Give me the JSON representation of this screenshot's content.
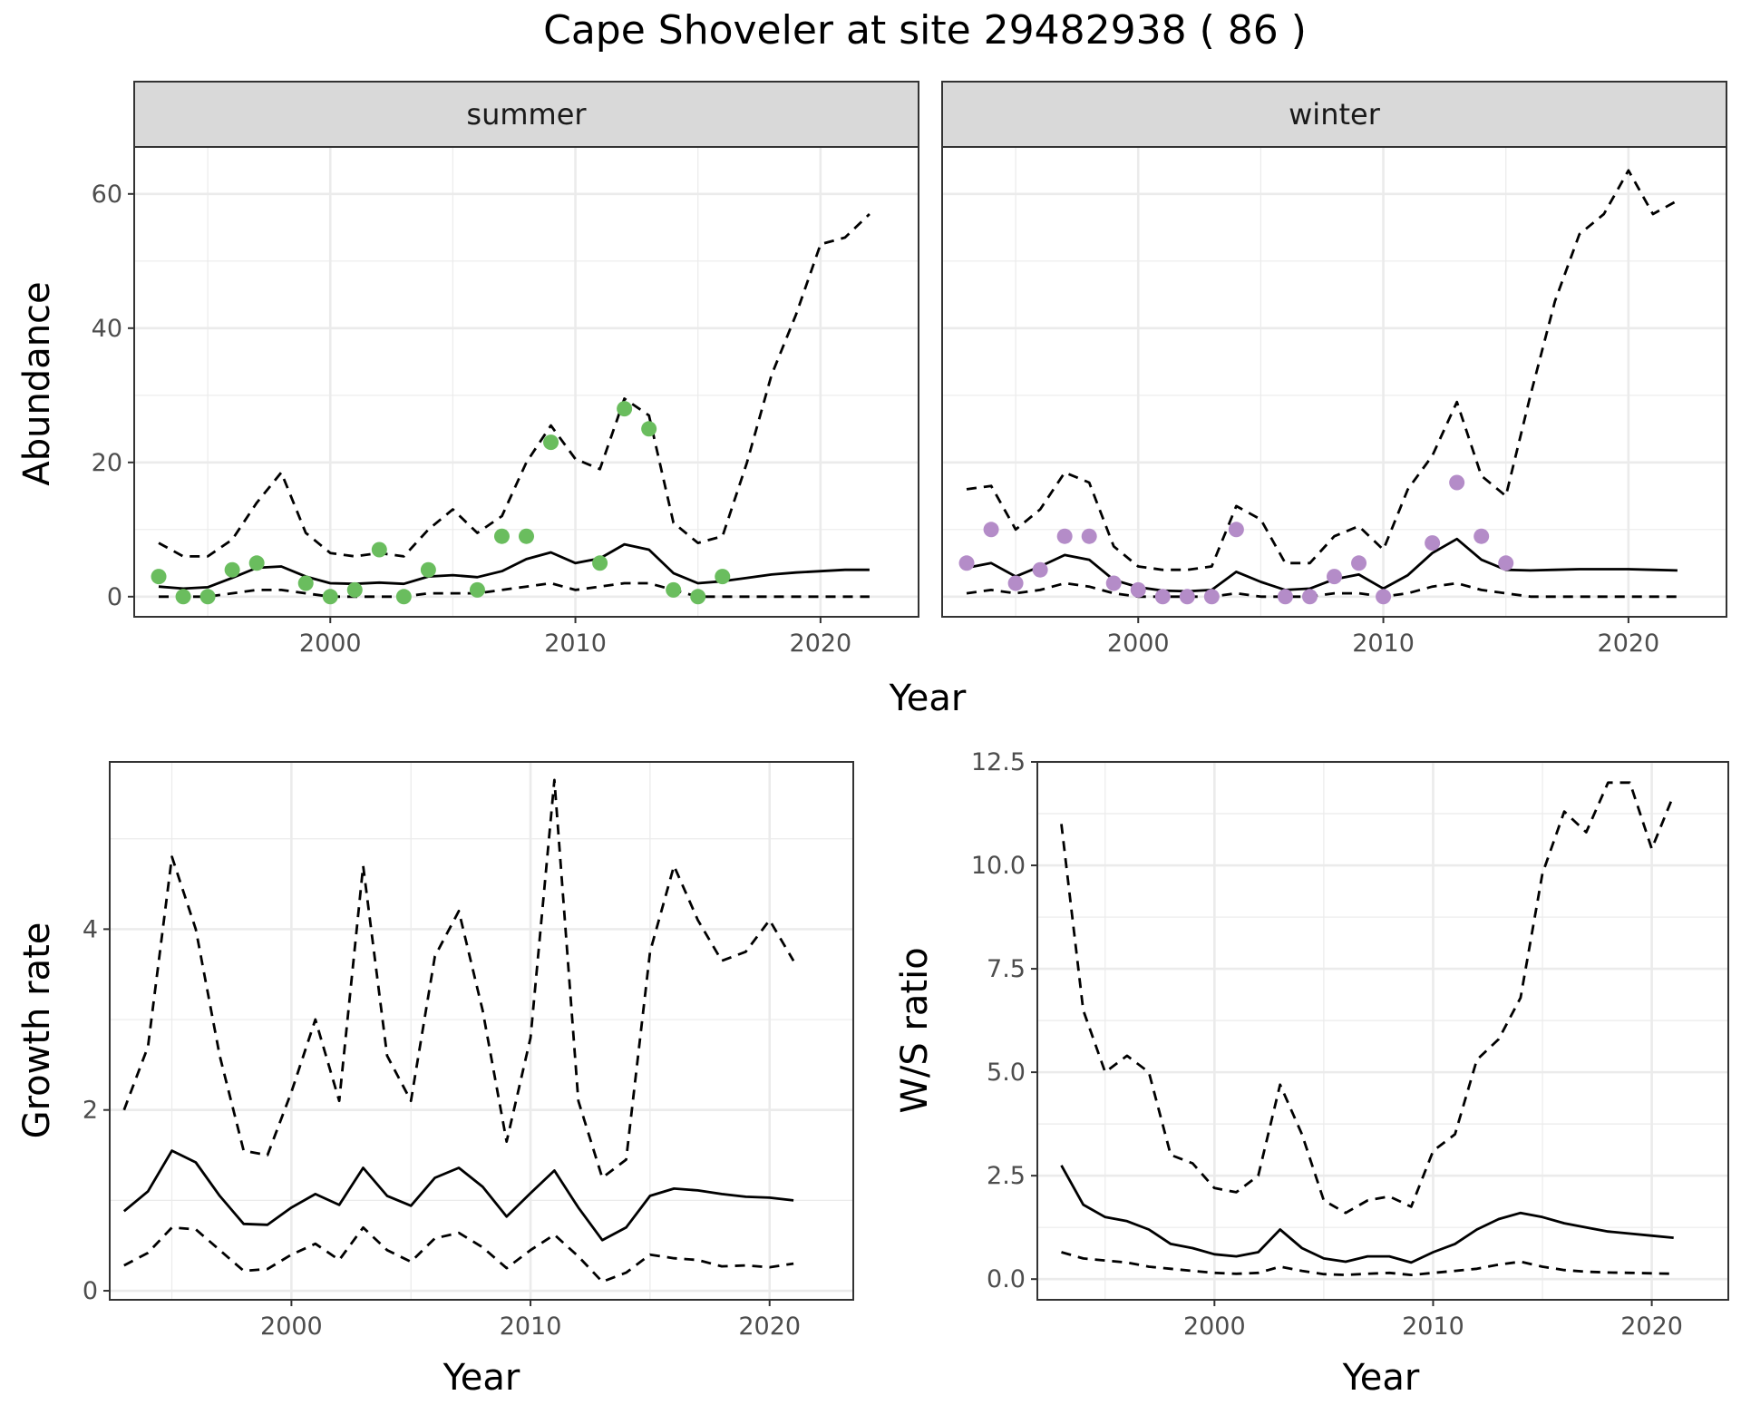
{
  "title": "Cape Shoveler at site 29482938 ( 86 )",
  "colors": {
    "summer_points": "#6abd5e",
    "winter_points": "#b48cc8",
    "lines": "#000000",
    "strip_fill": "#d9d9d9",
    "grid": "#ebebeb"
  },
  "chart_data": [
    {
      "type": "line",
      "panel": "abundance",
      "xlabel": "Year",
      "ylabel": "Abundance",
      "xlim": [
        1992,
        2024
      ],
      "ylim": [
        -3,
        67
      ],
      "x_ticks": [
        2000,
        2010,
        2020
      ],
      "y_ticks": [
        0,
        20,
        40,
        60
      ],
      "facets": [
        {
          "label": "summer",
          "point_color": "#6abd5e",
          "observed": {
            "x": [
              1993,
              1994,
              1995,
              1996,
              1997,
              1999,
              2000,
              2001,
              2002,
              2003,
              2004,
              2006,
              2007,
              2008,
              2009,
              2011,
              2012,
              2013,
              2014,
              2015,
              2016
            ],
            "y": [
              3,
              0,
              0,
              4,
              5,
              2,
              0,
              1,
              7,
              0,
              4,
              1,
              9,
              9,
              23,
              5,
              28,
              25,
              1,
              0,
              3
            ]
          },
          "series": [
            {
              "role": "estimate",
              "x": [
                1993,
                1994,
                1995,
                1996,
                1997,
                1998,
                1999,
                2000,
                2001,
                2002,
                2003,
                2004,
                2005,
                2006,
                2007,
                2008,
                2009,
                2010,
                2011,
                2012,
                2013,
                2014,
                2015,
                2016,
                2017,
                2018,
                2019,
                2020,
                2021,
                2022
              ],
              "y": [
                1.5,
                1.2,
                1.4,
                2.8,
                4.3,
                4.5,
                3.0,
                2.0,
                1.9,
                2.1,
                1.9,
                3.0,
                3.2,
                2.9,
                3.8,
                5.6,
                6.6,
                5.0,
                5.7,
                7.8,
                7.0,
                3.5,
                2.0,
                2.3,
                2.8,
                3.3,
                3.6,
                3.8,
                4.0,
                4.0
              ]
            },
            {
              "role": "upper",
              "x": [
                1993,
                1994,
                1995,
                1996,
                1997,
                1998,
                1999,
                2000,
                2001,
                2002,
                2003,
                2004,
                2005,
                2006,
                2007,
                2008,
                2009,
                2010,
                2011,
                2012,
                2013,
                2014,
                2015,
                2016,
                2017,
                2018,
                2019,
                2020,
                2021,
                2022
              ],
              "y": [
                8,
                6,
                6,
                8.5,
                14,
                18.5,
                9.5,
                6.5,
                6,
                6.5,
                6,
                10,
                13,
                9.5,
                12,
                20,
                25.5,
                20.5,
                19,
                29.5,
                27,
                11,
                8,
                9,
                20,
                33,
                42,
                52.5,
                53.5,
                57
              ]
            },
            {
              "role": "lower",
              "x": [
                1993,
                1994,
                1995,
                1996,
                1997,
                1998,
                1999,
                2000,
                2001,
                2002,
                2003,
                2004,
                2005,
                2006,
                2007,
                2008,
                2009,
                2010,
                2011,
                2012,
                2013,
                2014,
                2015,
                2016,
                2017,
                2018,
                2019,
                2020,
                2021,
                2022
              ],
              "y": [
                0,
                0,
                0,
                0.5,
                1,
                1,
                0.5,
                0,
                0,
                0,
                0,
                0.5,
                0.5,
                0.5,
                1,
                1.5,
                2,
                1,
                1.5,
                2,
                2,
                1,
                0,
                0,
                0,
                0,
                0,
                0,
                0,
                0
              ]
            }
          ]
        },
        {
          "label": "winter",
          "point_color": "#b48cc8",
          "observed": {
            "x": [
              1993,
              1994,
              1995,
              1996,
              1997,
              1998,
              1999,
              2000,
              2001,
              2002,
              2003,
              2004,
              2006,
              2007,
              2008,
              2009,
              2010,
              2012,
              2013,
              2014,
              2015
            ],
            "y": [
              5,
              10,
              2,
              4,
              9,
              9,
              2,
              1,
              0,
              0,
              0,
              10,
              0,
              0,
              3,
              5,
              0,
              8,
              17,
              9,
              5
            ]
          },
          "series": [
            {
              "role": "estimate",
              "x": [
                1993,
                1994,
                1995,
                1996,
                1997,
                1998,
                1999,
                2000,
                2001,
                2002,
                2003,
                2004,
                2005,
                2006,
                2007,
                2008,
                2009,
                2010,
                2011,
                2012,
                2013,
                2014,
                2015,
                2016,
                2017,
                2018,
                2019,
                2020,
                2021,
                2022
              ],
              "y": [
                4.3,
                5.0,
                3.0,
                4.5,
                6.2,
                5.5,
                2.5,
                1.4,
                0.9,
                0.8,
                1.0,
                3.7,
                2.2,
                1.0,
                1.2,
                2.6,
                3.3,
                1.2,
                3.2,
                6.5,
                8.6,
                5.5,
                4.0,
                3.9,
                4.0,
                4.1,
                4.1,
                4.1,
                4.0,
                3.9
              ]
            },
            {
              "role": "upper",
              "x": [
                1993,
                1994,
                1995,
                1996,
                1997,
                1998,
                1999,
                2000,
                2001,
                2002,
                2003,
                2004,
                2005,
                2006,
                2007,
                2008,
                2009,
                2010,
                2011,
                2012,
                2013,
                2014,
                2015,
                2016,
                2017,
                2018,
                2019,
                2020,
                2021,
                2022
              ],
              "y": [
                16,
                16.5,
                10,
                13,
                18.5,
                17,
                7.5,
                4.5,
                4,
                4,
                4.5,
                13.5,
                11.5,
                5,
                5,
                9,
                10.5,
                7,
                16,
                21,
                29,
                18,
                15,
                30,
                44,
                54,
                57,
                63.5,
                57,
                59
              ]
            },
            {
              "role": "lower",
              "x": [
                1993,
                1994,
                1995,
                1996,
                1997,
                1998,
                1999,
                2000,
                2001,
                2002,
                2003,
                2004,
                2005,
                2006,
                2007,
                2008,
                2009,
                2010,
                2011,
                2012,
                2013,
                2014,
                2015,
                2016,
                2017,
                2018,
                2019,
                2020,
                2021,
                2022
              ],
              "y": [
                0.5,
                1,
                0.5,
                1,
                2,
                1.5,
                0.5,
                0,
                0,
                0,
                0,
                0.5,
                0,
                0,
                0,
                0.5,
                0.5,
                0,
                0.5,
                1.5,
                2,
                1,
                0.5,
                0,
                0,
                0,
                0,
                0,
                0,
                0
              ]
            }
          ]
        }
      ]
    },
    {
      "type": "line",
      "panel": "growth",
      "xlabel": "Year",
      "ylabel": "Growth rate",
      "xlim": [
        1992.4,
        2023.5
      ],
      "ylim": [
        -0.1,
        5.85
      ],
      "x_ticks": [
        2000,
        2010,
        2020
      ],
      "y_ticks": [
        0,
        2,
        4
      ],
      "series": [
        {
          "role": "estimate",
          "x": [
            1993,
            1994,
            1995,
            1996,
            1997,
            1998,
            1999,
            2000,
            2001,
            2002,
            2003,
            2004,
            2005,
            2006,
            2007,
            2008,
            2009,
            2010,
            2011,
            2012,
            2013,
            2014,
            2015,
            2016,
            2017,
            2018,
            2019,
            2020,
            2021
          ],
          "y": [
            0.88,
            1.1,
            1.55,
            1.42,
            1.05,
            0.74,
            0.73,
            0.92,
            1.07,
            0.95,
            1.36,
            1.05,
            0.94,
            1.25,
            1.36,
            1.15,
            0.82,
            1.08,
            1.33,
            0.92,
            0.56,
            0.7,
            1.05,
            1.13,
            1.11,
            1.07,
            1.04,
            1.03,
            1.0
          ]
        },
        {
          "role": "upper",
          "x": [
            1993,
            1994,
            1995,
            1996,
            1997,
            1998,
            1999,
            2000,
            2001,
            2002,
            2003,
            2004,
            2005,
            2006,
            2007,
            2008,
            2009,
            2010,
            2011,
            2012,
            2013,
            2014,
            2015,
            2016,
            2017,
            2018,
            2019,
            2020,
            2021
          ],
          "y": [
            2.0,
            2.7,
            4.8,
            4.0,
            2.6,
            1.55,
            1.5,
            2.2,
            3.0,
            2.1,
            4.7,
            2.6,
            2.1,
            3.7,
            4.2,
            3.1,
            1.65,
            2.8,
            5.65,
            2.1,
            1.25,
            1.45,
            3.75,
            4.7,
            4.1,
            3.65,
            3.75,
            4.1,
            3.65
          ]
        },
        {
          "role": "lower",
          "x": [
            1993,
            1994,
            1995,
            1996,
            1997,
            1998,
            1999,
            2000,
            2001,
            2002,
            2003,
            2004,
            2005,
            2006,
            2007,
            2008,
            2009,
            2010,
            2011,
            2012,
            2013,
            2014,
            2015,
            2016,
            2017,
            2018,
            2019,
            2020,
            2021
          ],
          "y": [
            0.28,
            0.42,
            0.7,
            0.68,
            0.45,
            0.22,
            0.24,
            0.4,
            0.52,
            0.34,
            0.7,
            0.45,
            0.32,
            0.58,
            0.64,
            0.48,
            0.25,
            0.45,
            0.62,
            0.38,
            0.1,
            0.2,
            0.4,
            0.36,
            0.34,
            0.27,
            0.28,
            0.26,
            0.3
          ]
        }
      ]
    },
    {
      "type": "line",
      "panel": "ratio",
      "xlabel": "Year",
      "ylabel": "W/S ratio",
      "xlim": [
        1991.9,
        2023.5
      ],
      "ylim": [
        -0.5,
        12.5
      ],
      "x_ticks": [
        2000,
        2010,
        2020
      ],
      "y_ticks": [
        0.0,
        2.5,
        5.0,
        7.5,
        10.0,
        12.5
      ],
      "y_tick_labels": [
        "0.0",
        "2.5",
        "5.0",
        "7.5",
        "10.0",
        "12.5"
      ],
      "series": [
        {
          "role": "estimate",
          "x": [
            1993,
            1994,
            1995,
            1996,
            1997,
            1998,
            1999,
            2000,
            2001,
            2002,
            2003,
            2004,
            2005,
            2006,
            2007,
            2008,
            2009,
            2010,
            2011,
            2012,
            2013,
            2014,
            2015,
            2016,
            2017,
            2018,
            2019,
            2020,
            2021
          ],
          "y": [
            2.75,
            1.8,
            1.5,
            1.4,
            1.2,
            0.85,
            0.75,
            0.6,
            0.55,
            0.65,
            1.2,
            0.75,
            0.5,
            0.42,
            0.55,
            0.55,
            0.4,
            0.65,
            0.85,
            1.2,
            1.45,
            1.6,
            1.5,
            1.35,
            1.25,
            1.15,
            1.1,
            1.05,
            1.0
          ]
        },
        {
          "role": "upper",
          "x": [
            1993,
            1994,
            1995,
            1996,
            1997,
            1998,
            1999,
            2000,
            2001,
            2002,
            2003,
            2004,
            2005,
            2006,
            2007,
            2008,
            2009,
            2010,
            2011,
            2012,
            2013,
            2014,
            2015,
            2016,
            2017,
            2018,
            2019,
            2020,
            2021
          ],
          "y": [
            11.0,
            6.5,
            5.0,
            5.4,
            5.0,
            3.0,
            2.8,
            2.2,
            2.1,
            2.5,
            4.7,
            3.5,
            1.9,
            1.6,
            1.9,
            2.0,
            1.75,
            3.1,
            3.5,
            5.3,
            5.8,
            6.8,
            9.8,
            11.3,
            10.8,
            12.0,
            12.0,
            10.4,
            11.7
          ]
        },
        {
          "role": "lower",
          "x": [
            1993,
            1994,
            1995,
            1996,
            1997,
            1998,
            1999,
            2000,
            2001,
            2002,
            2003,
            2004,
            2005,
            2006,
            2007,
            2008,
            2009,
            2010,
            2011,
            2012,
            2013,
            2014,
            2015,
            2016,
            2017,
            2018,
            2019,
            2020,
            2021
          ],
          "y": [
            0.65,
            0.5,
            0.45,
            0.4,
            0.3,
            0.25,
            0.2,
            0.15,
            0.13,
            0.15,
            0.3,
            0.2,
            0.12,
            0.1,
            0.13,
            0.15,
            0.1,
            0.15,
            0.2,
            0.25,
            0.35,
            0.42,
            0.3,
            0.22,
            0.18,
            0.16,
            0.15,
            0.14,
            0.13
          ]
        }
      ]
    }
  ]
}
